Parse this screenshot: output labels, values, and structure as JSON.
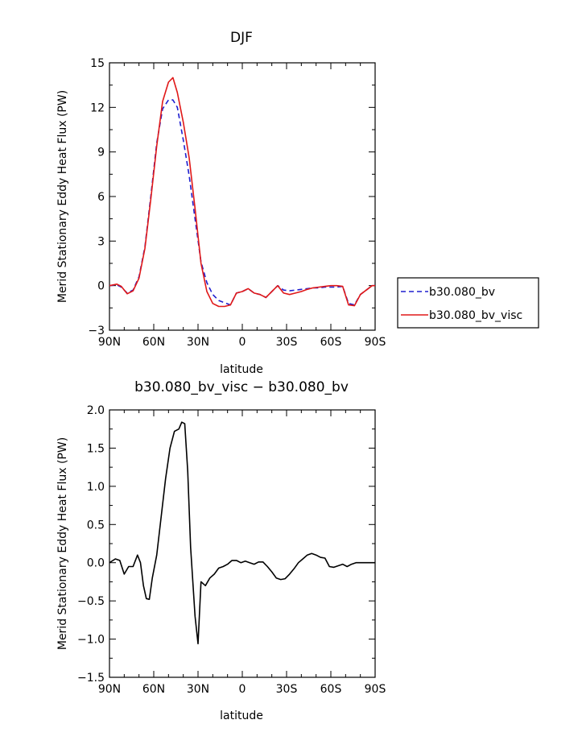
{
  "chart_data": [
    {
      "type": "line",
      "title": "DJF",
      "xlabel": "latitude",
      "ylabel": "Merid Stationary Eddy Heat Flux (PW)",
      "xlim": [
        -90,
        90
      ],
      "ylim": [
        -3,
        15
      ],
      "x_ticks": [
        -90,
        -60,
        -30,
        0,
        30,
        60,
        90
      ],
      "x_tick_labels": [
        "90N",
        "60N",
        "30N",
        "0",
        "30S",
        "60S",
        "90S"
      ],
      "y_ticks": [
        -3,
        0,
        3,
        6,
        9,
        12,
        15
      ],
      "y_tick_labels": [
        "−3",
        "0",
        "3",
        "6",
        "9",
        "12",
        "15"
      ],
      "legend_position": "right",
      "grid": false,
      "series": [
        {
          "name": "b30.080_bv",
          "color": "#1f1fcf",
          "dash": "dashed",
          "x": [
            -90,
            -85,
            -82,
            -78,
            -74,
            -70,
            -66,
            -62,
            -58,
            -54,
            -50,
            -47,
            -44,
            -40,
            -36,
            -32,
            -28,
            -24,
            -20,
            -16,
            -12,
            -8,
            -4,
            0,
            4,
            8,
            12,
            16,
            20,
            24,
            28,
            32,
            36,
            40,
            44,
            48,
            52,
            56,
            60,
            64,
            68,
            72,
            76,
            80,
            84,
            88,
            90
          ],
          "y": [
            0,
            0.05,
            -0.1,
            -0.5,
            -0.3,
            0.6,
            2.6,
            6.0,
            9.6,
            11.9,
            12.5,
            12.5,
            12.0,
            9.8,
            7.4,
            4.5,
            1.6,
            0.2,
            -0.6,
            -1.0,
            -1.15,
            -1.3,
            -0.5,
            -0.4,
            -0.2,
            -0.5,
            -0.6,
            -0.8,
            -0.4,
            0.0,
            -0.3,
            -0.35,
            -0.3,
            -0.25,
            -0.2,
            -0.15,
            -0.15,
            -0.1,
            -0.1,
            -0.1,
            -0.05,
            -1.2,
            -1.3,
            -0.6,
            -0.3,
            0,
            0
          ]
        },
        {
          "name": "b30.080_bv_visc",
          "color": "#e01818",
          "dash": "solid",
          "x": [
            -90,
            -85,
            -82,
            -78,
            -74,
            -70,
            -66,
            -62,
            -58,
            -54,
            -50,
            -47,
            -44,
            -40,
            -36,
            -32,
            -28,
            -24,
            -20,
            -16,
            -12,
            -8,
            -4,
            0,
            4,
            8,
            12,
            16,
            20,
            24,
            28,
            32,
            36,
            40,
            44,
            48,
            52,
            56,
            60,
            64,
            68,
            72,
            76,
            80,
            84,
            88,
            90
          ],
          "y": [
            0,
            0.1,
            -0.05,
            -0.55,
            -0.35,
            0.5,
            2.5,
            5.8,
            9.4,
            12.4,
            13.7,
            14.0,
            13.0,
            11.0,
            8.6,
            5.2,
            1.5,
            -0.4,
            -1.2,
            -1.4,
            -1.4,
            -1.3,
            -0.5,
            -0.4,
            -0.2,
            -0.5,
            -0.6,
            -0.8,
            -0.4,
            0.0,
            -0.5,
            -0.6,
            -0.5,
            -0.4,
            -0.25,
            -0.15,
            -0.1,
            -0.05,
            0,
            0,
            -0.05,
            -1.3,
            -1.35,
            -0.6,
            -0.3,
            0,
            0
          ]
        }
      ]
    },
    {
      "type": "line",
      "title": "b30.080_bv_visc − b30.080_bv",
      "xlabel": "latitude",
      "ylabel": "Merid Stationary Eddy Heat Flux (PW)",
      "xlim": [
        -90,
        90
      ],
      "ylim": [
        -1.5,
        2.0
      ],
      "x_ticks": [
        -90,
        -60,
        -30,
        0,
        30,
        60,
        90
      ],
      "x_tick_labels": [
        "90N",
        "60N",
        "30N",
        "0",
        "30S",
        "60S",
        "90S"
      ],
      "y_ticks": [
        -1.5,
        -1.0,
        -0.5,
        0.0,
        0.5,
        1.0,
        1.5,
        2.0
      ],
      "y_tick_labels": [
        "−1.5",
        "−1.0",
        "−0.5",
        "0.0",
        "0.5",
        "1.0",
        "1.5",
        "2.0"
      ],
      "grid": false,
      "series": [
        {
          "color": "#000000",
          "dash": "solid",
          "x": [
            -90,
            -86,
            -83,
            -80,
            -77,
            -74,
            -71,
            -69,
            -67,
            -65,
            -63,
            -61,
            -58,
            -55,
            -52,
            -49,
            -46,
            -43,
            -41,
            -39,
            -37,
            -35,
            -32,
            -30,
            -28,
            -25,
            -22,
            -19,
            -16,
            -13,
            -10,
            -7,
            -4,
            -1,
            2,
            5,
            8,
            11,
            14,
            17,
            20,
            23,
            26,
            29,
            32,
            35,
            38,
            41,
            44,
            47,
            50,
            53,
            56,
            59,
            62,
            65,
            68,
            71,
            74,
            77,
            80,
            83,
            86,
            90
          ],
          "y": [
            0,
            0.05,
            0.03,
            -0.15,
            -0.05,
            -0.05,
            0.1,
            0.0,
            -0.3,
            -0.47,
            -0.48,
            -0.2,
            0.1,
            0.6,
            1.1,
            1.5,
            1.72,
            1.75,
            1.84,
            1.82,
            1.2,
            0.2,
            -0.7,
            -1.06,
            -0.25,
            -0.3,
            -0.2,
            -0.15,
            -0.07,
            -0.05,
            -0.02,
            0.03,
            0.03,
            0.0,
            0.02,
            0.0,
            -0.02,
            0.01,
            0.01,
            -0.05,
            -0.12,
            -0.2,
            -0.22,
            -0.21,
            -0.15,
            -0.08,
            0.0,
            0.05,
            0.1,
            0.12,
            0.1,
            0.07,
            0.06,
            -0.05,
            -0.06,
            -0.04,
            -0.02,
            -0.05,
            -0.02,
            0.0,
            0.0,
            0.0,
            0.0,
            0.0
          ]
        }
      ]
    }
  ]
}
